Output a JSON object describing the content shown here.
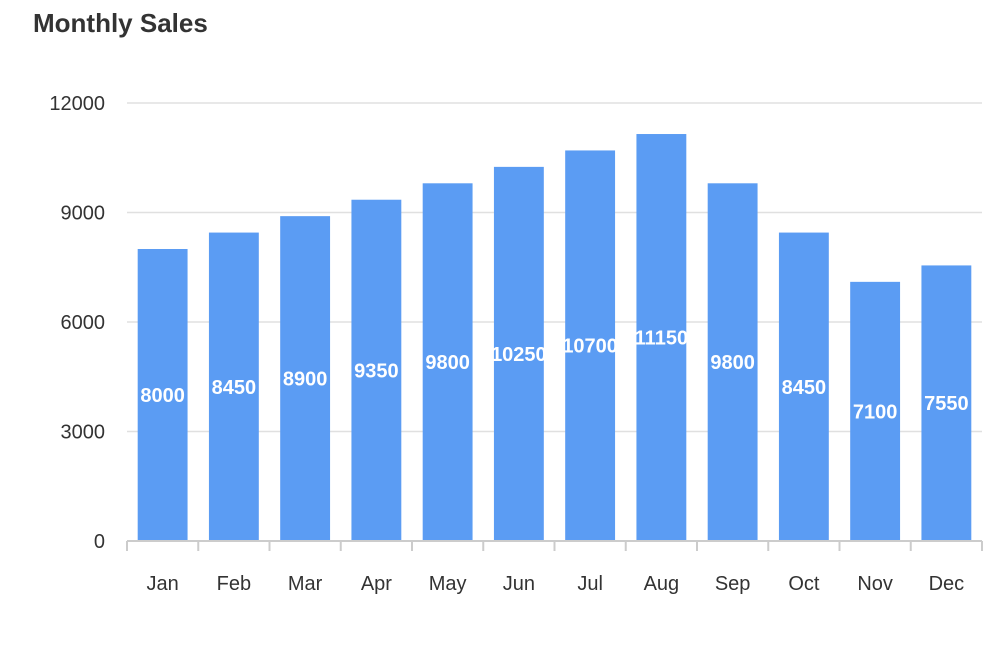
{
  "chart_data": {
    "type": "bar",
    "title": "Monthly Sales",
    "xlabel": "",
    "ylabel": "",
    "categories": [
      "Jan",
      "Feb",
      "Mar",
      "Apr",
      "May",
      "Jun",
      "Jul",
      "Aug",
      "Sep",
      "Oct",
      "Nov",
      "Dec"
    ],
    "values": [
      8000,
      8450,
      8900,
      9350,
      9800,
      10250,
      10700,
      11150,
      9800,
      8450,
      7100,
      7550
    ],
    "ylim": [
      0,
      12000
    ],
    "yticks": [
      0,
      3000,
      6000,
      9000,
      12000
    ],
    "grid": true,
    "legend": "none",
    "bar_color": "#5b9cf3",
    "grid_color": "#e0e0e0",
    "axis_color": "#cccccc"
  }
}
